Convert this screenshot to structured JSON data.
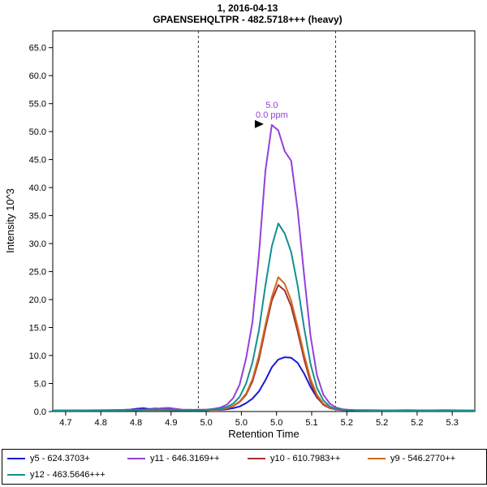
{
  "title": {
    "line1": "1, 2016-04-13",
    "line2": "GPAENSEHQLTPR - 482.5718+++ (heavy)"
  },
  "axes": {
    "x_label": "Retention Time",
    "y_label": "Intensity 10^3"
  },
  "chart_data": {
    "type": "line",
    "title": "1, 2016-04-13 | GPAENSEHQLTPR - 482.5718+++ (heavy)",
    "xlabel": "Retention Time",
    "ylabel": "Intensity 10^3",
    "xlim": [
      4.68,
      5.335
    ],
    "ylim": [
      0,
      68
    ],
    "grid": false,
    "legend_position": "bottom",
    "x_ticks": {
      "first": 4.7,
      "last": 5.3,
      "labels": [
        "4.7",
        "4.8",
        "4.8",
        "4.9",
        "5.0",
        "5.0",
        "5.0",
        "5.1",
        "5.2",
        "5.2",
        "5.2",
        "5.3"
      ]
    },
    "y_ticks": {
      "values": [
        0,
        5,
        10,
        15,
        20,
        25,
        30,
        35,
        40,
        45,
        50,
        55,
        60,
        65
      ],
      "labels": [
        "0.0",
        "5.0",
        "10.0",
        "15.0",
        "20.0",
        "25.0",
        "30.0",
        "35.0",
        "40.0",
        "45.0",
        "50.0",
        "55.0",
        "60.0",
        "65.0"
      ]
    },
    "peak_boundaries": [
      4.906,
      5.119
    ],
    "peak_annotation": {
      "x": 5.02,
      "y": 51.2,
      "lines": [
        "5.0",
        "0.0 ppm"
      ],
      "color": "#9341d8"
    },
    "series": [
      {
        "name": "y5 - 624.3703+",
        "color": "#1a1ad4",
        "points": [
          [
            4.68,
            0.15
          ],
          [
            4.72,
            0.2
          ],
          [
            4.76,
            0.15
          ],
          [
            4.8,
            0.35
          ],
          [
            4.81,
            0.5
          ],
          [
            4.82,
            0.6
          ],
          [
            4.83,
            0.45
          ],
          [
            4.84,
            0.55
          ],
          [
            4.85,
            0.5
          ],
          [
            4.86,
            0.6
          ],
          [
            4.87,
            0.4
          ],
          [
            4.88,
            0.3
          ],
          [
            4.9,
            0.25
          ],
          [
            4.92,
            0.25
          ],
          [
            4.93,
            0.3
          ],
          [
            4.94,
            0.3
          ],
          [
            4.95,
            0.4
          ],
          [
            4.96,
            0.6
          ],
          [
            4.97,
            0.9
          ],
          [
            4.98,
            1.5
          ],
          [
            4.99,
            2.3
          ],
          [
            5.0,
            3.6
          ],
          [
            5.01,
            5.6
          ],
          [
            5.02,
            7.9
          ],
          [
            5.03,
            9.3
          ],
          [
            5.04,
            9.7
          ],
          [
            5.05,
            9.6
          ],
          [
            5.06,
            8.7
          ],
          [
            5.07,
            6.8
          ],
          [
            5.08,
            4.4
          ],
          [
            5.09,
            2.5
          ],
          [
            5.1,
            1.3
          ],
          [
            5.11,
            0.7
          ],
          [
            5.12,
            0.4
          ],
          [
            5.13,
            0.3
          ],
          [
            5.14,
            0.25
          ],
          [
            5.15,
            0.2
          ],
          [
            5.17,
            0.2
          ],
          [
            5.2,
            0.15
          ],
          [
            5.23,
            0.2
          ],
          [
            5.26,
            0.15
          ],
          [
            5.29,
            0.2
          ],
          [
            5.32,
            0.15
          ],
          [
            5.335,
            0.15
          ]
        ]
      },
      {
        "name": "y11 - 646.3169++",
        "color": "#9341d8",
        "points": [
          [
            4.68,
            0.2
          ],
          [
            4.72,
            0.2
          ],
          [
            4.76,
            0.25
          ],
          [
            4.8,
            0.3
          ],
          [
            4.82,
            0.35
          ],
          [
            4.84,
            0.45
          ],
          [
            4.85,
            0.6
          ],
          [
            4.86,
            0.65
          ],
          [
            4.87,
            0.5
          ],
          [
            4.88,
            0.35
          ],
          [
            4.9,
            0.3
          ],
          [
            4.92,
            0.35
          ],
          [
            4.93,
            0.5
          ],
          [
            4.94,
            0.7
          ],
          [
            4.95,
            1.2
          ],
          [
            4.96,
            2.4
          ],
          [
            4.97,
            4.8
          ],
          [
            4.98,
            9.5
          ],
          [
            4.99,
            16.0
          ],
          [
            5.0,
            28.0
          ],
          [
            5.01,
            43.0
          ],
          [
            5.02,
            51.2
          ],
          [
            5.03,
            50.2
          ],
          [
            5.04,
            46.5
          ],
          [
            5.05,
            44.8
          ],
          [
            5.06,
            36.0
          ],
          [
            5.07,
            24.5
          ],
          [
            5.08,
            13.5
          ],
          [
            5.09,
            6.5
          ],
          [
            5.1,
            3.0
          ],
          [
            5.11,
            1.4
          ],
          [
            5.12,
            0.7
          ],
          [
            5.13,
            0.4
          ],
          [
            5.14,
            0.3
          ],
          [
            5.15,
            0.25
          ],
          [
            5.17,
            0.25
          ],
          [
            5.2,
            0.2
          ],
          [
            5.23,
            0.25
          ],
          [
            5.26,
            0.2
          ],
          [
            5.29,
            0.25
          ],
          [
            5.32,
            0.2
          ],
          [
            5.335,
            0.2
          ]
        ]
      },
      {
        "name": "y10 - 610.7983++",
        "color": "#a23030",
        "points": [
          [
            4.68,
            0.15
          ],
          [
            4.73,
            0.2
          ],
          [
            4.78,
            0.2
          ],
          [
            4.82,
            0.3
          ],
          [
            4.84,
            0.3
          ],
          [
            4.86,
            0.25
          ],
          [
            4.88,
            0.2
          ],
          [
            4.9,
            0.25
          ],
          [
            4.92,
            0.3
          ],
          [
            4.93,
            0.3
          ],
          [
            4.94,
            0.38
          ],
          [
            4.95,
            0.55
          ],
          [
            4.96,
            0.95
          ],
          [
            4.97,
            1.7
          ],
          [
            4.98,
            3.0
          ],
          [
            4.99,
            5.4
          ],
          [
            5.0,
            9.3
          ],
          [
            5.01,
            14.8
          ],
          [
            5.02,
            19.8
          ],
          [
            5.03,
            22.6
          ],
          [
            5.04,
            21.6
          ],
          [
            5.05,
            18.8
          ],
          [
            5.06,
            14.3
          ],
          [
            5.07,
            9.4
          ],
          [
            5.08,
            5.2
          ],
          [
            5.09,
            2.6
          ],
          [
            5.1,
            1.2
          ],
          [
            5.11,
            0.6
          ],
          [
            5.12,
            0.35
          ],
          [
            5.13,
            0.25
          ],
          [
            5.15,
            0.2
          ],
          [
            5.18,
            0.15
          ],
          [
            5.22,
            0.2
          ],
          [
            5.26,
            0.15
          ],
          [
            5.3,
            0.2
          ],
          [
            5.335,
            0.15
          ]
        ]
      },
      {
        "name": "y9 - 546.2770++",
        "color": "#d2691e",
        "points": [
          [
            4.68,
            0.15
          ],
          [
            4.74,
            0.2
          ],
          [
            4.79,
            0.18
          ],
          [
            4.83,
            0.28
          ],
          [
            4.86,
            0.25
          ],
          [
            4.89,
            0.2
          ],
          [
            4.91,
            0.22
          ],
          [
            4.93,
            0.3
          ],
          [
            4.94,
            0.4
          ],
          [
            4.95,
            0.6
          ],
          [
            4.96,
            1.0
          ],
          [
            4.97,
            1.8
          ],
          [
            4.98,
            3.2
          ],
          [
            4.99,
            5.8
          ],
          [
            5.0,
            10.0
          ],
          [
            5.01,
            15.5
          ],
          [
            5.02,
            20.5
          ],
          [
            5.03,
            24.0
          ],
          [
            5.04,
            22.8
          ],
          [
            5.05,
            19.8
          ],
          [
            5.06,
            15.2
          ],
          [
            5.07,
            10.2
          ],
          [
            5.08,
            5.8
          ],
          [
            5.09,
            3.0
          ],
          [
            5.1,
            1.4
          ],
          [
            5.11,
            0.7
          ],
          [
            5.12,
            0.4
          ],
          [
            5.13,
            0.28
          ],
          [
            5.15,
            0.22
          ],
          [
            5.18,
            0.18
          ],
          [
            5.22,
            0.2
          ],
          [
            5.26,
            0.16
          ],
          [
            5.3,
            0.2
          ],
          [
            5.335,
            0.16
          ]
        ]
      },
      {
        "name": "y12 - 463.5646+++",
        "color": "#139090",
        "points": [
          [
            4.68,
            0.15
          ],
          [
            4.73,
            0.2
          ],
          [
            4.78,
            0.2
          ],
          [
            4.82,
            0.3
          ],
          [
            4.85,
            0.35
          ],
          [
            4.88,
            0.25
          ],
          [
            4.9,
            0.2
          ],
          [
            4.92,
            0.3
          ],
          [
            4.93,
            0.4
          ],
          [
            4.94,
            0.5
          ],
          [
            4.95,
            0.8
          ],
          [
            4.96,
            1.4
          ],
          [
            4.97,
            2.6
          ],
          [
            4.98,
            5.0
          ],
          [
            4.99,
            8.8
          ],
          [
            5.0,
            14.5
          ],
          [
            5.01,
            22.5
          ],
          [
            5.02,
            29.5
          ],
          [
            5.03,
            33.6
          ],
          [
            5.04,
            31.8
          ],
          [
            5.05,
            28.5
          ],
          [
            5.06,
            22.5
          ],
          [
            5.07,
            15.0
          ],
          [
            5.08,
            8.5
          ],
          [
            5.09,
            4.2
          ],
          [
            5.1,
            2.0
          ],
          [
            5.11,
            0.9
          ],
          [
            5.12,
            0.45
          ],
          [
            5.13,
            0.3
          ],
          [
            5.14,
            0.25
          ],
          [
            5.15,
            0.2
          ],
          [
            5.18,
            0.2
          ],
          [
            5.22,
            0.15
          ],
          [
            5.26,
            0.2
          ],
          [
            5.3,
            0.15
          ],
          [
            5.335,
            0.15
          ]
        ]
      }
    ]
  }
}
